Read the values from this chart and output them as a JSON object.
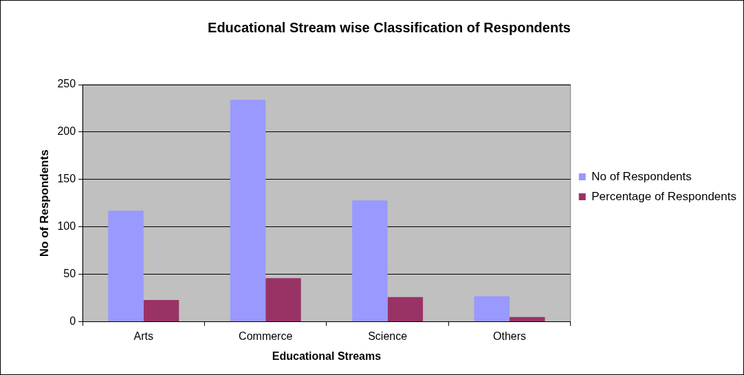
{
  "chart_data": {
    "type": "bar",
    "title": "Educational Stream wise Classification of Respondents",
    "xlabel": "Educational Streams",
    "ylabel": "No of Respondents",
    "categories": [
      "Arts",
      "Commerce",
      "Science",
      "Others"
    ],
    "series": [
      {
        "name": "No of Respondents",
        "color": "#9999ff",
        "values": [
          117,
          234,
          128,
          27
        ]
      },
      {
        "name": "Percentage of Respondents",
        "color": "#993366",
        "values": [
          23,
          46,
          26,
          5
        ]
      }
    ],
    "ylim": [
      0,
      250
    ],
    "yticks": [
      0,
      50,
      100,
      150,
      200,
      250
    ],
    "grid": "y",
    "legend": "right"
  }
}
